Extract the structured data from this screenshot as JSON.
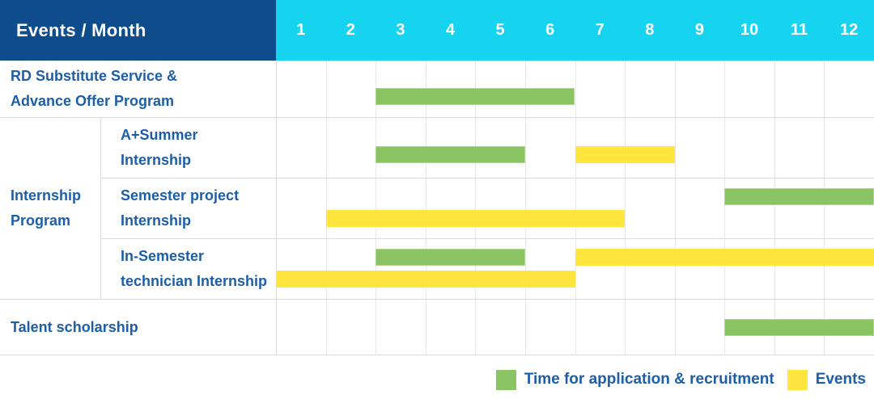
{
  "colors": {
    "header_navy": "#0E4C8C",
    "header_cyan": "#16D4EF",
    "label_blue": "#1C5EA8",
    "bar_green": "#8BC462",
    "bar_yellow": "#FFE53E",
    "grid_line": "#E9E9E9",
    "row_line": "#DBDBDB",
    "header_text": "#FFFFFF"
  },
  "header": {
    "title": "Events / Month",
    "months": [
      "1",
      "2",
      "3",
      "4",
      "5",
      "6",
      "7",
      "8",
      "9",
      "10",
      "11",
      "12"
    ]
  },
  "group": {
    "label": "Internship Program",
    "label_lines": [
      "Internship",
      "Program"
    ]
  },
  "rows": [
    {
      "name": "rd-substitute-service",
      "label": "RD Substitute Service & Advance Offer Program",
      "label_lines": [
        "RD Substitute Service &",
        "Advance Offer Program"
      ],
      "group": null,
      "bars": [
        {
          "type": "application",
          "lane": "low",
          "start_month": 3,
          "end_month": 6
        }
      ]
    },
    {
      "name": "a-plus-summer-internship",
      "label": "A+Summer Internship",
      "label_lines": [
        "A+Summer",
        "Internship"
      ],
      "group": "Internship Program",
      "bars": [
        {
          "type": "application",
          "lane": "low",
          "start_month": 3,
          "end_month": 5
        },
        {
          "type": "events",
          "lane": "low",
          "start_month": 7,
          "end_month": 8
        }
      ]
    },
    {
      "name": "semester-project-internship",
      "label": "Semester project Internship",
      "label_lines": [
        "Semester project",
        "Internship"
      ],
      "group": "Internship Program",
      "bars": [
        {
          "type": "application",
          "lane": "top",
          "start_month": 10,
          "end_month": 12
        },
        {
          "type": "events",
          "lane": "bottom",
          "start_month": 2,
          "end_month": 7
        }
      ]
    },
    {
      "name": "in-semester-technician-internship",
      "label": "In-Semester technician Internship",
      "label_lines": [
        "In-Semester",
        "technician Internship"
      ],
      "group": "Internship Program",
      "bars": [
        {
          "type": "application",
          "lane": "top",
          "start_month": 3,
          "end_month": 5
        },
        {
          "type": "events",
          "lane": "top",
          "start_month": 7,
          "end_month": 12
        },
        {
          "type": "events",
          "lane": "bottom",
          "start_month": 1,
          "end_month": 6
        }
      ]
    },
    {
      "name": "talent-scholarship",
      "label": "Talent scholarship",
      "label_lines": [
        "Talent scholarship"
      ],
      "group": null,
      "bars": [
        {
          "type": "application",
          "lane": "center",
          "start_month": 10,
          "end_month": 12
        }
      ]
    }
  ],
  "legend": {
    "items": [
      {
        "type": "application",
        "label": "Time for application & recruitment",
        "color": "#8BC462"
      },
      {
        "type": "events",
        "label": "Events",
        "color": "#FFE53E"
      }
    ]
  },
  "chart_data": {
    "type": "bar",
    "subtype": "gantt",
    "title": "Events / Month",
    "xlabel": "Month",
    "x_ticks": [
      "1",
      "2",
      "3",
      "4",
      "5",
      "6",
      "7",
      "8",
      "9",
      "10",
      "11",
      "12"
    ],
    "x_range": [
      1,
      12
    ],
    "grid": true,
    "legend_position": "bottom-right",
    "legend_entries": [
      "Time for application & recruitment",
      "Events"
    ],
    "rows": [
      {
        "label": "RD Substitute Service & Advance Offer Program",
        "group": null,
        "segments": [
          {
            "series": "Time for application & recruitment",
            "start_month": 3,
            "end_month": 6
          }
        ]
      },
      {
        "label": "A+Summer Internship",
        "group": "Internship Program",
        "segments": [
          {
            "series": "Time for application & recruitment",
            "start_month": 3,
            "end_month": 5
          },
          {
            "series": "Events",
            "start_month": 7,
            "end_month": 8
          }
        ]
      },
      {
        "label": "Semester project Internship",
        "group": "Internship Program",
        "segments": [
          {
            "series": "Time for application & recruitment",
            "start_month": 10,
            "end_month": 12
          },
          {
            "series": "Events",
            "start_month": 2,
            "end_month": 7
          }
        ]
      },
      {
        "label": "In-Semester technician Internship",
        "group": "Internship Program",
        "segments": [
          {
            "series": "Time for application & recruitment",
            "start_month": 3,
            "end_month": 5
          },
          {
            "series": "Events",
            "start_month": 7,
            "end_month": 12
          },
          {
            "series": "Events",
            "start_month": 1,
            "end_month": 6
          }
        ]
      },
      {
        "label": "Talent scholarship",
        "group": null,
        "segments": [
          {
            "series": "Time for application & recruitment",
            "start_month": 10,
            "end_month": 12
          }
        ]
      }
    ]
  }
}
